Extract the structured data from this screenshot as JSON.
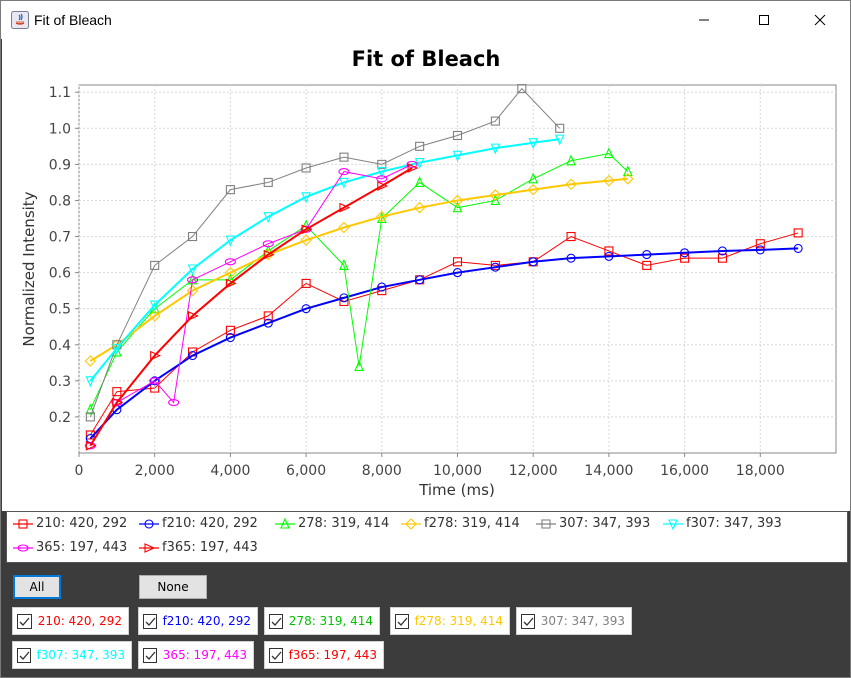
{
  "window": {
    "title": "Fit of Bleach"
  },
  "chart_data": {
    "type": "scatter",
    "title": "Fit of Bleach",
    "xlabel": "Time (ms)",
    "ylabel": "Normalized Intensity",
    "xlim": [
      0,
      20000
    ],
    "ylim": [
      0.1,
      1.12
    ],
    "xticks": [
      "0",
      "2,000",
      "4,000",
      "6,000",
      "8,000",
      "10,000",
      "12,000",
      "14,000",
      "16,000",
      "18,000"
    ],
    "yticks": [
      "0.2",
      "0.3",
      "0.4",
      "0.5",
      "0.6",
      "0.7",
      "0.8",
      "0.9",
      "1.0",
      "1.1"
    ],
    "grid": true,
    "legend_position": "bottom",
    "series": [
      {
        "name": "210: 420, 292",
        "color": "#ff0000",
        "marker": "square",
        "kind": "data",
        "x": [
          300,
          1000,
          2000,
          3000,
          4000,
          5000,
          6000,
          7000,
          8000,
          9000,
          10000,
          11000,
          12000,
          13000,
          14000,
          15000,
          16000,
          17000,
          18000,
          19000
        ],
        "values": [
          0.15,
          0.27,
          0.28,
          0.38,
          0.44,
          0.48,
          0.57,
          0.52,
          0.55,
          0.58,
          0.63,
          0.62,
          0.63,
          0.7,
          0.66,
          0.62,
          0.64,
          0.64,
          0.68,
          0.71
        ]
      },
      {
        "name": "f210: 420, 292",
        "color": "#0000ff",
        "marker": "circle",
        "kind": "fit",
        "x": [
          300,
          1000,
          2000,
          3000,
          4000,
          5000,
          6000,
          7000,
          8000,
          9000,
          10000,
          11000,
          12000,
          13000,
          14000,
          15000,
          16000,
          17000,
          18000,
          19000
        ],
        "values": [
          0.14,
          0.22,
          0.3,
          0.37,
          0.42,
          0.46,
          0.5,
          0.53,
          0.56,
          0.58,
          0.6,
          0.615,
          0.63,
          0.64,
          0.645,
          0.65,
          0.655,
          0.66,
          0.663,
          0.667
        ]
      },
      {
        "name": "278: 319, 414",
        "color": "#00ff00",
        "marker": "triangle",
        "kind": "data",
        "x": [
          300,
          1000,
          2000,
          3000,
          4000,
          5000,
          6000,
          7000,
          7400,
          8000,
          9000,
          10000,
          11000,
          12000,
          13000,
          14000,
          14500
        ],
        "values": [
          0.22,
          0.38,
          0.5,
          0.58,
          0.58,
          0.66,
          0.73,
          0.62,
          0.34,
          0.75,
          0.85,
          0.78,
          0.8,
          0.86,
          0.91,
          0.93,
          0.88
        ]
      },
      {
        "name": "f278: 319, 414",
        "color": "#ffc800",
        "marker": "diamond",
        "kind": "fit",
        "x": [
          300,
          1000,
          2000,
          3000,
          4000,
          5000,
          6000,
          7000,
          8000,
          9000,
          10000,
          11000,
          12000,
          13000,
          14000,
          14500
        ],
        "values": [
          0.355,
          0.4,
          0.48,
          0.55,
          0.6,
          0.65,
          0.69,
          0.725,
          0.755,
          0.78,
          0.8,
          0.815,
          0.83,
          0.845,
          0.855,
          0.86
        ]
      },
      {
        "name": "307: 347, 393",
        "color": "#808080",
        "marker": "square",
        "kind": "data",
        "x": [
          300,
          1000,
          2000,
          3000,
          4000,
          5000,
          6000,
          7000,
          8000,
          9000,
          10000,
          11000,
          11700,
          12700
        ],
        "values": [
          0.2,
          0.4,
          0.62,
          0.7,
          0.83,
          0.85,
          0.89,
          0.92,
          0.9,
          0.95,
          0.98,
          1.02,
          1.11,
          1.0
        ]
      },
      {
        "name": "f307: 347, 393",
        "color": "#00ffff",
        "marker": "triangle-down",
        "kind": "fit",
        "x": [
          300,
          1000,
          2000,
          3000,
          4000,
          5000,
          6000,
          7000,
          8000,
          9000,
          10000,
          11000,
          12000,
          12700
        ],
        "values": [
          0.3,
          0.39,
          0.51,
          0.61,
          0.69,
          0.755,
          0.81,
          0.85,
          0.88,
          0.905,
          0.925,
          0.945,
          0.96,
          0.97
        ]
      },
      {
        "name": "365: 197, 443",
        "color": "#ff00ff",
        "marker": "ellipse",
        "kind": "data",
        "x": [
          300,
          1000,
          2000,
          2500,
          3000,
          4000,
          5000,
          6000,
          7000,
          8000,
          8800
        ],
        "values": [
          0.12,
          0.24,
          0.3,
          0.24,
          0.58,
          0.63,
          0.68,
          0.72,
          0.88,
          0.86,
          0.9
        ]
      },
      {
        "name": "f365: 197, 443",
        "color": "#ff0000",
        "marker": "triangle-right",
        "kind": "fit",
        "x": [
          300,
          1000,
          2000,
          3000,
          4000,
          5000,
          6000,
          7000,
          8000,
          8800
        ],
        "values": [
          0.12,
          0.24,
          0.37,
          0.48,
          0.57,
          0.65,
          0.72,
          0.78,
          0.84,
          0.89
        ]
      }
    ]
  },
  "controls": {
    "all_label": "All",
    "none_label": "None",
    "checkboxes": [
      {
        "label": "210: 420, 292",
        "color": "#ff0000",
        "checked": true
      },
      {
        "label": "f210: 420, 292",
        "color": "#0000ff",
        "checked": true
      },
      {
        "label": "278: 319, 414",
        "color": "#00c000",
        "checked": true
      },
      {
        "label": "f278: 319, 414",
        "color": "#ffc800",
        "checked": true
      },
      {
        "label": "307: 347, 393",
        "color": "#808080",
        "checked": true
      },
      {
        "label": "f307: 347, 393",
        "color": "#00ffff",
        "checked": true
      },
      {
        "label": "365: 197, 443",
        "color": "#ff00ff",
        "checked": true
      },
      {
        "label": "f365: 197, 443",
        "color": "#ff0000",
        "checked": true
      }
    ]
  }
}
